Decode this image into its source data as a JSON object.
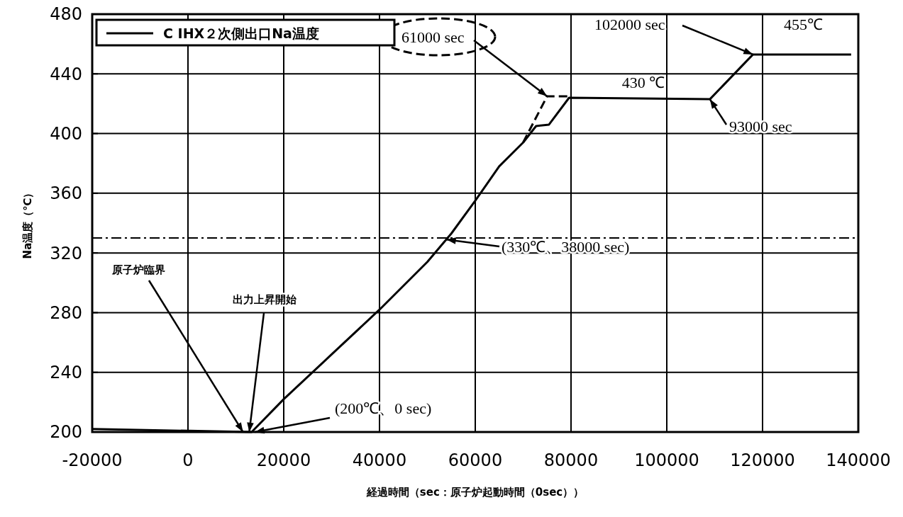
{
  "chart_data": {
    "type": "line",
    "xlabel": "経過時間（sec：原子炉起動時間（0sec））",
    "ylabel": "Na温度（℃）",
    "xlim": [
      -20000,
      140000
    ],
    "xticks": [
      -20000,
      0,
      20000,
      40000,
      60000,
      80000,
      100000,
      120000,
      140000
    ],
    "ylim": [
      200,
      480
    ],
    "yticks": [
      200,
      240,
      280,
      320,
      360,
      400,
      440,
      480
    ],
    "grid": true,
    "legend": "top left",
    "series": [
      {
        "name": "C IHX２次側出口Na温度",
        "color": "#000000",
        "line_style": "solid",
        "x": [
          -20000,
          13300,
          20000,
          30000,
          40000,
          50000,
          55000,
          60000,
          65000,
          70000,
          72700,
          75400,
          79600,
          109000,
          118000,
          138500
        ],
        "values": [
          202,
          200,
          222,
          252,
          282,
          314,
          333,
          355,
          378,
          394,
          405,
          406,
          424,
          423,
          453,
          453
        ]
      },
      {
        "color": "#000000",
        "line_style": "dashed",
        "x": [
          70000,
          75000,
          79600
        ],
        "values": [
          394,
          425,
          425
        ]
      }
    ],
    "ref_lines": [
      {
        "axis": "y",
        "value": 330,
        "line_style": "dashed",
        "color": "#000000"
      }
    ],
    "annotations": [
      {
        "text": "61000 sec",
        "x": 75000,
        "y": 425
      },
      {
        "text": "430 ℃",
        "x": 88000,
        "y": 425
      },
      {
        "text": "102000 sec",
        "x": 118000,
        "y": 453
      },
      {
        "text": "455℃",
        "x": 126000,
        "y": 453
      },
      {
        "text": "93000 sec",
        "x": 109000,
        "y": 423
      },
      {
        "text": "(330℃、38000 sec)",
        "x": 54000,
        "y": 329
      },
      {
        "text": "(200℃、0 sec)",
        "x": 14000,
        "y": 200
      },
      {
        "text": "原子炉臨界",
        "x": 11500,
        "y": 200
      },
      {
        "text": "出力上昇開始",
        "x": 12800,
        "y": 200
      }
    ]
  }
}
